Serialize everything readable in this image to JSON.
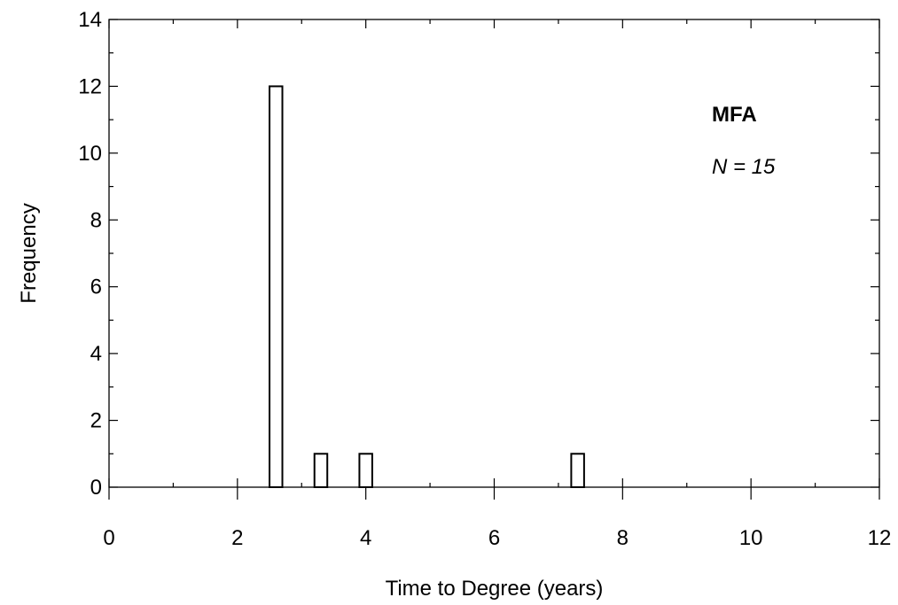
{
  "chart_data": {
    "type": "bar",
    "title": "",
    "xlabel": "Time to Degree (years)",
    "ylabel": "Frequency",
    "xlim": [
      0,
      12
    ],
    "ylim": [
      0,
      14
    ],
    "x_ticks": [
      "0",
      "2",
      "4",
      "6",
      "8",
      "10",
      "12"
    ],
    "y_ticks": [
      "0",
      "2",
      "4",
      "6",
      "8",
      "10",
      "12",
      "14"
    ],
    "bin_width": 0.2,
    "bins": [
      {
        "x_start": 2.5,
        "x_end": 2.7,
        "value": 12
      },
      {
        "x_start": 3.2,
        "x_end": 3.4,
        "value": 1
      },
      {
        "x_start": 3.9,
        "x_end": 4.1,
        "value": 1
      },
      {
        "x_start": 7.2,
        "x_end": 7.4,
        "value": 1
      }
    ],
    "annotations": {
      "group": "MFA",
      "n": "N = 15"
    },
    "grid": false,
    "colors": {
      "bar_fill": "#ffffff",
      "bar_stroke": "#000000"
    }
  }
}
